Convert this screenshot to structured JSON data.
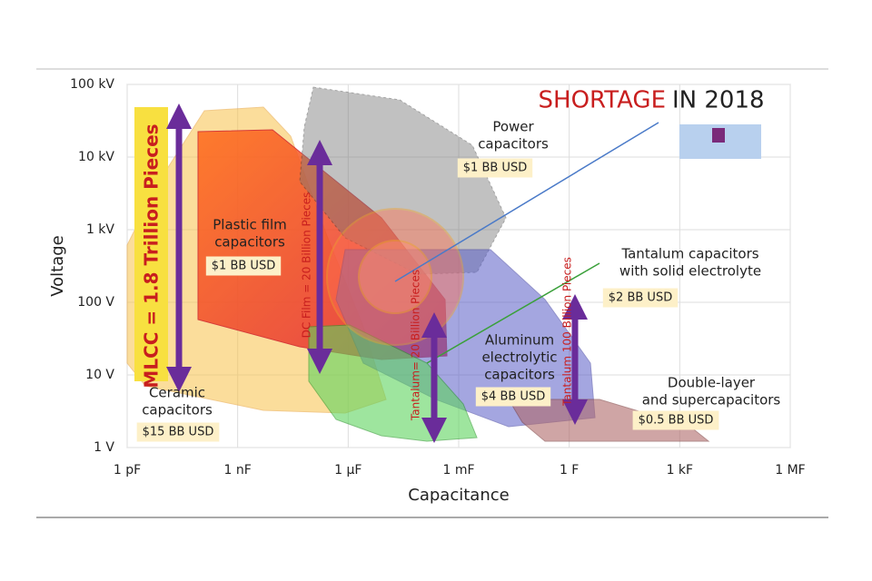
{
  "chart_data": {
    "type": "region-map",
    "title_highlight": "SHORTAGE",
    "title_rest": "IN 2018",
    "xlabel": "Capacitance",
    "ylabel": "Voltage",
    "xscale": "log",
    "yscale": "log",
    "xlim": [
      1e-12,
      1000000.0
    ],
    "ylim": [
      1,
      100000
    ],
    "xticks": [
      {
        "value": 1e-12,
        "label": "1 pF"
      },
      {
        "value": 1e-09,
        "label": "1 nF"
      },
      {
        "value": 1e-06,
        "label": "1 µF"
      },
      {
        "value": 0.001,
        "label": "1 mF"
      },
      {
        "value": 1,
        "label": "1 F"
      },
      {
        "value": 1000,
        "label": "1 kF"
      },
      {
        "value": 1000000.0,
        "label": "1 MF"
      }
    ],
    "yticks": [
      {
        "value": 1,
        "label": "1 V"
      },
      {
        "value": 10,
        "label": "10 V"
      },
      {
        "value": 100,
        "label": "100 V"
      },
      {
        "value": 1000,
        "label": "1 kV"
      },
      {
        "value": 10000,
        "label": "10 kV"
      },
      {
        "value": 100000,
        "label": "100 kV"
      }
    ],
    "grid": true,
    "regions": [
      {
        "lines": [
          "Power",
          "capacitors"
        ],
        "market": "$1 BB USD"
      },
      {
        "lines": [
          "Plastic film",
          "capacitors"
        ],
        "market": "$1 BB USD"
      },
      {
        "lines": [
          "Ceramic",
          "capacitors"
        ],
        "market": "$15 BB USD"
      },
      {
        "lines": [
          "Tantalum capacitors",
          "with solid electrolyte"
        ],
        "market": "$2 BB USD"
      },
      {
        "lines": [
          "Aluminum",
          "electrolytic",
          "capacitors"
        ],
        "market": "$4 BB USD"
      },
      {
        "lines": [
          "Double-layer",
          "and supercapacitors"
        ],
        "market": "$0.5 BB USD"
      }
    ],
    "arrows": [
      "MLCC = 1.8 Trillion Pieces",
      "DC Film = 20 Billion Pieces",
      "Tantalum= 20 Billion Pieces",
      "Tantalum 100 Billion Pieces"
    ]
  }
}
